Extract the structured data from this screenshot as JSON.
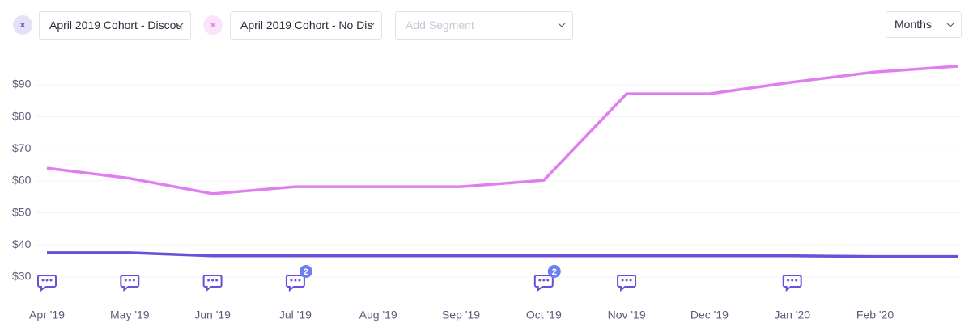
{
  "controls": {
    "segment_placeholder": "Add Segment",
    "period": "Months"
  },
  "chart_data": {
    "type": "line",
    "categories": [
      "Apr '19",
      "May '19",
      "Jun '19",
      "Jul '19",
      "Aug '19",
      "Sep '19",
      "Oct '19",
      "Nov '19",
      "Dec '19",
      "Jan '20",
      "Feb '20",
      null
    ],
    "series": [
      {
        "name": "April 2019 Cohort - Discou",
        "color": "#6c4fd8",
        "values": [
          37.6,
          37.6,
          36.6,
          36.6,
          36.6,
          36.6,
          36.6,
          36.6,
          36.6,
          36.6,
          36.4,
          36.4
        ]
      },
      {
        "name": "April 2019 Cohort - No Dis",
        "color": "#e07ef0",
        "values": [
          64.0,
          60.8,
          56.0,
          58.2,
          58.2,
          58.2,
          60.2,
          87.2,
          87.2,
          90.8,
          94.0,
          95.8
        ]
      }
    ],
    "ylim": [
      25,
      100
    ],
    "yticks": [
      {
        "value": 30,
        "label": "$30"
      },
      {
        "value": 40,
        "label": "$40"
      },
      {
        "value": 50,
        "label": "$50"
      },
      {
        "value": 60,
        "label": "$60"
      },
      {
        "value": 70,
        "label": "$70"
      },
      {
        "value": 80,
        "label": "$80"
      },
      {
        "value": 90,
        "label": "$90"
      }
    ],
    "grid": true,
    "annotations": [
      {
        "x": "Apr '19"
      },
      {
        "x": "May '19"
      },
      {
        "x": "Jun '19"
      },
      {
        "x": "Jul '19",
        "count": 2
      },
      {
        "x": "Oct '19",
        "count": 2
      },
      {
        "x": "Nov '19"
      },
      {
        "x": "Jan '20"
      }
    ]
  }
}
